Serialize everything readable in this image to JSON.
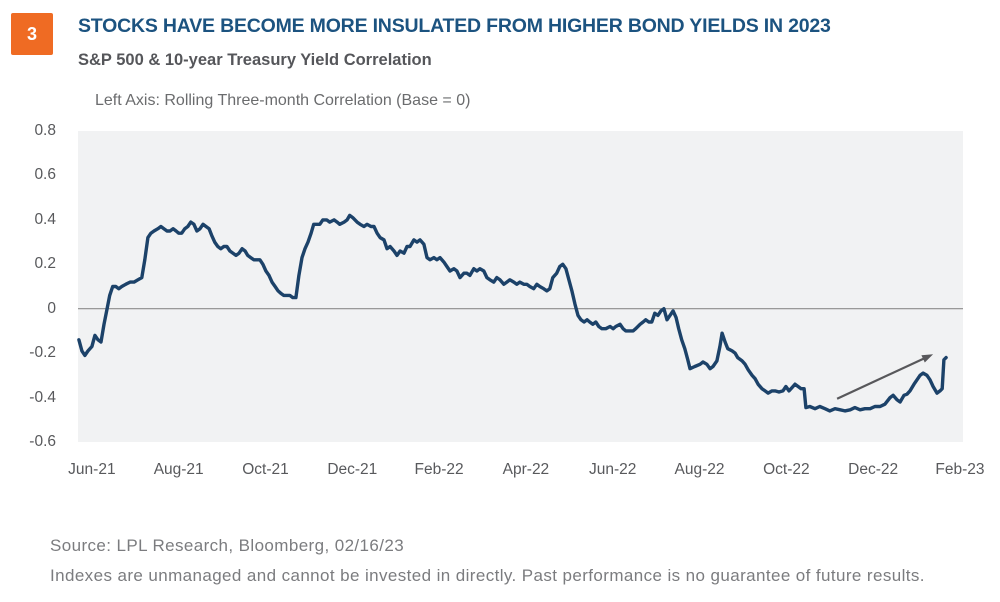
{
  "badge": {
    "number": "3"
  },
  "header": {
    "title": "STOCKS HAVE BECOME MORE INSULATED FROM HIGHER BOND YIELDS IN 2023",
    "subtitle": "S&P 500 & 10-year Treasury Yield Correlation"
  },
  "chart_data": {
    "type": "line",
    "title": "Left Axis: Rolling Three-month Correlation (Base = 0)",
    "x_unit": "months since Jun-2021 (0 = Jun-21, 2 = Aug-21, ... 20 = Feb-23)",
    "xlim": [
      -0.32,
      20.07
    ],
    "ylim": [
      -0.6,
      0.8
    ],
    "grid": false,
    "baseline": 0,
    "legend": "none",
    "colors": {
      "line": "#1C4269",
      "plot_bg": "#F1F2F3",
      "baseline": "#8C8C8C",
      "arrow": "#58585B",
      "accent_orange": "#EF6B23",
      "title_navy": "#1C5380"
    },
    "x_ticks": [
      {
        "m": 0,
        "label": "Jun-21"
      },
      {
        "m": 2,
        "label": "Aug-21"
      },
      {
        "m": 4,
        "label": "Oct-21"
      },
      {
        "m": 6,
        "label": "Dec-21"
      },
      {
        "m": 8,
        "label": "Feb-22"
      },
      {
        "m": 10,
        "label": "Apr-22"
      },
      {
        "m": 12,
        "label": "Jun-22"
      },
      {
        "m": 14,
        "label": "Aug-22"
      },
      {
        "m": 16,
        "label": "Oct-22"
      },
      {
        "m": 18,
        "label": "Dec-22"
      },
      {
        "m": 20,
        "label": "Feb-23"
      }
    ],
    "y_ticks": [
      {
        "v": 0.8,
        "label": "0.8"
      },
      {
        "v": 0.6,
        "label": "0.6"
      },
      {
        "v": 0.4,
        "label": "0.4"
      },
      {
        "v": 0.2,
        "label": "0.2"
      },
      {
        "v": 0,
        "label": "0"
      },
      {
        "v": -0.2,
        "label": "-0.2"
      },
      {
        "v": -0.4,
        "label": "-0.4"
      },
      {
        "v": -0.6,
        "label": "-0.6"
      }
    ],
    "series": [
      {
        "name": "Rolling three-month correlation: S&P 500 vs 10-year Treasury yield",
        "points": [
          [
            -0.3,
            -0.14
          ],
          [
            -0.23,
            -0.19
          ],
          [
            -0.16,
            -0.21
          ],
          [
            -0.09,
            -0.19
          ],
          [
            0.0,
            -0.17
          ],
          [
            0.07,
            -0.12
          ],
          [
            0.14,
            -0.14
          ],
          [
            0.21,
            -0.15
          ],
          [
            0.28,
            -0.07
          ],
          [
            0.35,
            0.0
          ],
          [
            0.41,
            0.06
          ],
          [
            0.48,
            0.1
          ],
          [
            0.55,
            0.1
          ],
          [
            0.62,
            0.09
          ],
          [
            0.69,
            0.1
          ],
          [
            0.78,
            0.11
          ],
          [
            0.88,
            0.12
          ],
          [
            0.97,
            0.12
          ],
          [
            1.06,
            0.13
          ],
          [
            1.15,
            0.14
          ],
          [
            1.22,
            0.22
          ],
          [
            1.29,
            0.32
          ],
          [
            1.36,
            0.34
          ],
          [
            1.43,
            0.35
          ],
          [
            1.52,
            0.36
          ],
          [
            1.59,
            0.37
          ],
          [
            1.66,
            0.36
          ],
          [
            1.73,
            0.35
          ],
          [
            1.8,
            0.35
          ],
          [
            1.87,
            0.36
          ],
          [
            1.94,
            0.35
          ],
          [
            2.0,
            0.34
          ],
          [
            2.07,
            0.34
          ],
          [
            2.14,
            0.36
          ],
          [
            2.21,
            0.37
          ],
          [
            2.28,
            0.39
          ],
          [
            2.35,
            0.38
          ],
          [
            2.42,
            0.35
          ],
          [
            2.49,
            0.36
          ],
          [
            2.56,
            0.38
          ],
          [
            2.63,
            0.37
          ],
          [
            2.7,
            0.36
          ],
          [
            2.76,
            0.33
          ],
          [
            2.83,
            0.3
          ],
          [
            2.9,
            0.28
          ],
          [
            2.97,
            0.27
          ],
          [
            3.04,
            0.28
          ],
          [
            3.11,
            0.28
          ],
          [
            3.18,
            0.26
          ],
          [
            3.25,
            0.25
          ],
          [
            3.32,
            0.24
          ],
          [
            3.39,
            0.25
          ],
          [
            3.46,
            0.27
          ],
          [
            3.53,
            0.26
          ],
          [
            3.59,
            0.24
          ],
          [
            3.66,
            0.23
          ],
          [
            3.73,
            0.22
          ],
          [
            3.8,
            0.22
          ],
          [
            3.87,
            0.22
          ],
          [
            3.94,
            0.2
          ],
          [
            4.01,
            0.17
          ],
          [
            4.08,
            0.15
          ],
          [
            4.15,
            0.12
          ],
          [
            4.22,
            0.1
          ],
          [
            4.29,
            0.08
          ],
          [
            4.35,
            0.07
          ],
          [
            4.42,
            0.06
          ],
          [
            4.49,
            0.06
          ],
          [
            4.56,
            0.06
          ],
          [
            4.63,
            0.05
          ],
          [
            4.7,
            0.05
          ],
          [
            4.77,
            0.15
          ],
          [
            4.84,
            0.23
          ],
          [
            4.91,
            0.27
          ],
          [
            4.98,
            0.3
          ],
          [
            5.05,
            0.34
          ],
          [
            5.11,
            0.38
          ],
          [
            5.18,
            0.38
          ],
          [
            5.25,
            0.38
          ],
          [
            5.32,
            0.4
          ],
          [
            5.41,
            0.4
          ],
          [
            5.48,
            0.39
          ],
          [
            5.58,
            0.4
          ],
          [
            5.65,
            0.39
          ],
          [
            5.71,
            0.38
          ],
          [
            5.81,
            0.39
          ],
          [
            5.88,
            0.4
          ],
          [
            5.94,
            0.42
          ],
          [
            6.01,
            0.41
          ],
          [
            6.11,
            0.39
          ],
          [
            6.18,
            0.38
          ],
          [
            6.27,
            0.37
          ],
          [
            6.34,
            0.38
          ],
          [
            6.43,
            0.37
          ],
          [
            6.5,
            0.37
          ],
          [
            6.57,
            0.34
          ],
          [
            6.64,
            0.32
          ],
          [
            6.73,
            0.31
          ],
          [
            6.8,
            0.27
          ],
          [
            6.87,
            0.28
          ],
          [
            6.96,
            0.26
          ],
          [
            7.03,
            0.24
          ],
          [
            7.1,
            0.26
          ],
          [
            7.19,
            0.25
          ],
          [
            7.26,
            0.28
          ],
          [
            7.33,
            0.28
          ],
          [
            7.42,
            0.31
          ],
          [
            7.49,
            0.3
          ],
          [
            7.56,
            0.31
          ],
          [
            7.65,
            0.29
          ],
          [
            7.72,
            0.23
          ],
          [
            7.79,
            0.22
          ],
          [
            7.88,
            0.23
          ],
          [
            7.95,
            0.22
          ],
          [
            8.02,
            0.23
          ],
          [
            8.11,
            0.21
          ],
          [
            8.18,
            0.19
          ],
          [
            8.25,
            0.17
          ],
          [
            8.34,
            0.18
          ],
          [
            8.41,
            0.17
          ],
          [
            8.48,
            0.14
          ],
          [
            8.57,
            0.16
          ],
          [
            8.64,
            0.16
          ],
          [
            8.71,
            0.15
          ],
          [
            8.8,
            0.18
          ],
          [
            8.87,
            0.17
          ],
          [
            8.94,
            0.18
          ],
          [
            9.03,
            0.17
          ],
          [
            9.1,
            0.14
          ],
          [
            9.17,
            0.13
          ],
          [
            9.26,
            0.12
          ],
          [
            9.33,
            0.14
          ],
          [
            9.4,
            0.13
          ],
          [
            9.49,
            0.11
          ],
          [
            9.56,
            0.12
          ],
          [
            9.63,
            0.13
          ],
          [
            9.72,
            0.12
          ],
          [
            9.79,
            0.11
          ],
          [
            9.86,
            0.12
          ],
          [
            9.95,
            0.11
          ],
          [
            10.02,
            0.11
          ],
          [
            10.09,
            0.1
          ],
          [
            10.18,
            0.09
          ],
          [
            10.25,
            0.11
          ],
          [
            10.32,
            0.1
          ],
          [
            10.41,
            0.09
          ],
          [
            10.48,
            0.08
          ],
          [
            10.55,
            0.09
          ],
          [
            10.62,
            0.14
          ],
          [
            10.71,
            0.16
          ],
          [
            10.78,
            0.19
          ],
          [
            10.85,
            0.2
          ],
          [
            10.92,
            0.18
          ],
          [
            10.99,
            0.13
          ],
          [
            11.06,
            0.08
          ],
          [
            11.13,
            0.02
          ],
          [
            11.2,
            -0.03
          ],
          [
            11.27,
            -0.05
          ],
          [
            11.34,
            -0.06
          ],
          [
            11.41,
            -0.05
          ],
          [
            11.47,
            -0.06
          ],
          [
            11.54,
            -0.07
          ],
          [
            11.61,
            -0.06
          ],
          [
            11.68,
            -0.08
          ],
          [
            11.75,
            -0.09
          ],
          [
            11.84,
            -0.09
          ],
          [
            11.94,
            -0.08
          ],
          [
            12.01,
            -0.09
          ],
          [
            12.07,
            -0.08
          ],
          [
            12.17,
            -0.07
          ],
          [
            12.24,
            -0.09
          ],
          [
            12.3,
            -0.1
          ],
          [
            12.4,
            -0.1
          ],
          [
            12.47,
            -0.1
          ],
          [
            12.53,
            -0.09
          ],
          [
            12.63,
            -0.07
          ],
          [
            12.7,
            -0.06
          ],
          [
            12.76,
            -0.05
          ],
          [
            12.83,
            -0.06
          ],
          [
            12.9,
            -0.06
          ],
          [
            12.97,
            -0.02
          ],
          [
            13.04,
            -0.03
          ],
          [
            13.11,
            -0.01
          ],
          [
            13.18,
            0.0
          ],
          [
            13.25,
            -0.05
          ],
          [
            13.32,
            -0.03
          ],
          [
            13.39,
            -0.01
          ],
          [
            13.46,
            -0.04
          ],
          [
            13.52,
            -0.09
          ],
          [
            13.59,
            -0.14
          ],
          [
            13.66,
            -0.18
          ],
          [
            13.73,
            -0.23
          ],
          [
            13.78,
            -0.27
          ],
          [
            13.89,
            -0.26
          ],
          [
            14.01,
            -0.25
          ],
          [
            14.08,
            -0.24
          ],
          [
            14.17,
            -0.25
          ],
          [
            14.24,
            -0.27
          ],
          [
            14.31,
            -0.26
          ],
          [
            14.4,
            -0.235
          ],
          [
            14.47,
            -0.17
          ],
          [
            14.52,
            -0.11
          ],
          [
            14.59,
            -0.15
          ],
          [
            14.65,
            -0.18
          ],
          [
            14.75,
            -0.19
          ],
          [
            14.82,
            -0.2
          ],
          [
            14.88,
            -0.22
          ],
          [
            14.98,
            -0.235
          ],
          [
            15.05,
            -0.25
          ],
          [
            15.12,
            -0.275
          ],
          [
            15.21,
            -0.3
          ],
          [
            15.28,
            -0.315
          ],
          [
            15.35,
            -0.34
          ],
          [
            15.44,
            -0.36
          ],
          [
            15.51,
            -0.37
          ],
          [
            15.58,
            -0.38
          ],
          [
            15.67,
            -0.37
          ],
          [
            15.74,
            -0.37
          ],
          [
            15.83,
            -0.375
          ],
          [
            15.92,
            -0.37
          ],
          [
            15.99,
            -0.35
          ],
          [
            16.06,
            -0.37
          ],
          [
            16.13,
            -0.355
          ],
          [
            16.2,
            -0.34
          ],
          [
            16.27,
            -0.35
          ],
          [
            16.34,
            -0.36
          ],
          [
            16.41,
            -0.36
          ],
          [
            16.45,
            -0.445
          ],
          [
            16.54,
            -0.44
          ],
          [
            16.66,
            -0.45
          ],
          [
            16.77,
            -0.44
          ],
          [
            16.89,
            -0.45
          ],
          [
            17.0,
            -0.46
          ],
          [
            17.12,
            -0.45
          ],
          [
            17.24,
            -0.455
          ],
          [
            17.35,
            -0.46
          ],
          [
            17.47,
            -0.455
          ],
          [
            17.58,
            -0.445
          ],
          [
            17.7,
            -0.455
          ],
          [
            17.81,
            -0.45
          ],
          [
            17.93,
            -0.45
          ],
          [
            18.04,
            -0.44
          ],
          [
            18.16,
            -0.44
          ],
          [
            18.27,
            -0.43
          ],
          [
            18.39,
            -0.4
          ],
          [
            18.46,
            -0.39
          ],
          [
            18.55,
            -0.41
          ],
          [
            18.62,
            -0.42
          ],
          [
            18.71,
            -0.39
          ],
          [
            18.78,
            -0.385
          ],
          [
            18.85,
            -0.37
          ],
          [
            18.94,
            -0.34
          ],
          [
            19.01,
            -0.32
          ],
          [
            19.08,
            -0.3
          ],
          [
            19.15,
            -0.29
          ],
          [
            19.24,
            -0.3
          ],
          [
            19.31,
            -0.32
          ],
          [
            19.38,
            -0.35
          ],
          [
            19.47,
            -0.38
          ],
          [
            19.54,
            -0.37
          ],
          [
            19.59,
            -0.36
          ],
          [
            19.63,
            -0.23
          ],
          [
            19.68,
            -0.22
          ]
        ]
      }
    ],
    "annotation_arrow": {
      "from": [
        17.17,
        -0.405
      ],
      "to": [
        19.38,
        -0.205
      ]
    }
  },
  "footer": {
    "source": "Source: LPL Research, Bloomberg, 02/16/23",
    "disclaimer": "Indexes are unmanaged and cannot be invested in directly. Past performance is no guarantee of future results."
  }
}
